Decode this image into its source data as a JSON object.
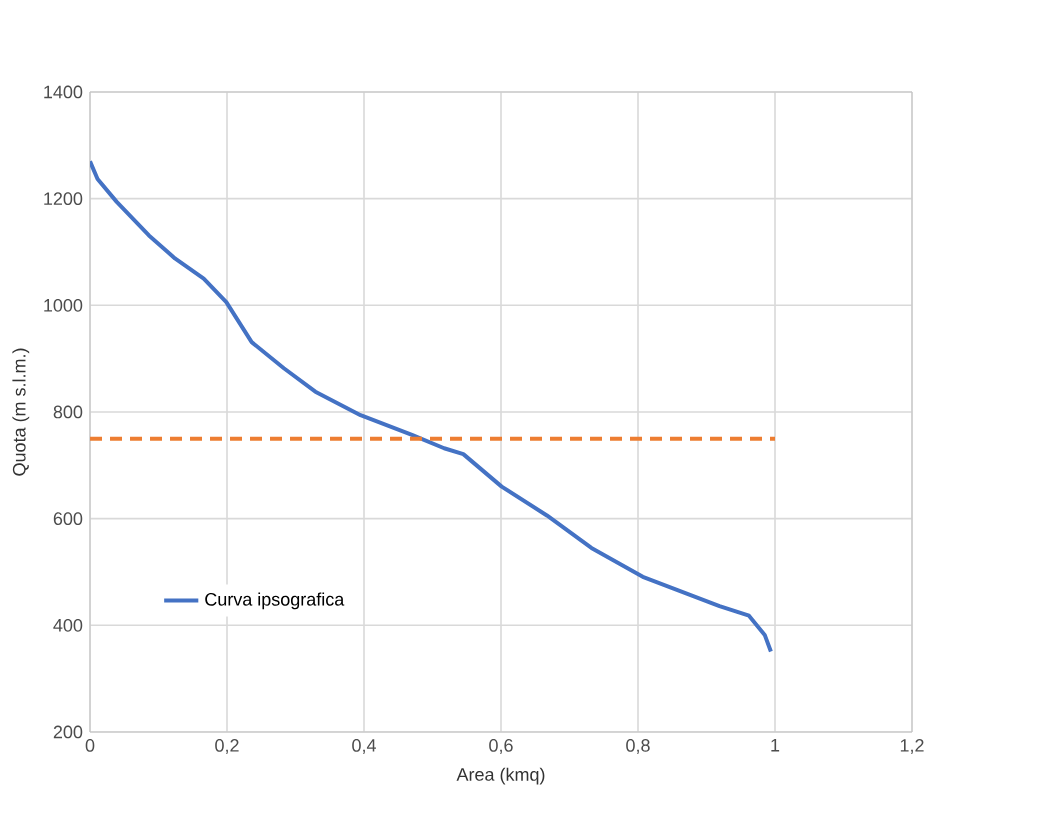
{
  "chart_data": {
    "type": "line",
    "xlabel": "Area (kmq)",
    "ylabel": "Quota (m s.l.m.)",
    "xlim": [
      0,
      1.2
    ],
    "ylim": [
      200,
      1400
    ],
    "xticks": [
      0,
      {
        "value": 0.2,
        "label": "0,2"
      },
      {
        "value": 0.4,
        "label": "0,4"
      },
      {
        "value": 0.6,
        "label": "0,6"
      },
      {
        "value": 0.8,
        "label": "0,8"
      },
      1,
      {
        "value": 1.2,
        "label": "1,2"
      }
    ],
    "yticks": [
      200,
      400,
      600,
      800,
      1000,
      1200,
      1400
    ],
    "grid": true,
    "legend": "bottom left",
    "marker": "none",
    "series": [
      {
        "name": "Curva ipsografica",
        "color": "#4472c4",
        "line_style": "solid",
        "x": [
          0,
          0.011,
          0.039,
          0.086,
          0.124,
          0.166,
          0.199,
          0.236,
          0.283,
          0.329,
          0.395,
          0.47,
          0.517,
          0.545,
          0.601,
          0.667,
          0.732,
          0.807,
          0.919,
          0.962,
          0.985,
          0.994
        ],
        "values": [
          1270,
          1237,
          1194,
          1131,
          1088,
          1050,
          1006,
          931,
          882,
          838,
          794,
          757,
          732,
          721,
          660,
          606,
          545,
          491,
          436,
          418,
          382,
          351
        ]
      },
      {
        "color": "#ed7d31",
        "line_style": "dashed",
        "x": [
          0,
          1
        ],
        "values": [
          750,
          750
        ]
      }
    ]
  }
}
